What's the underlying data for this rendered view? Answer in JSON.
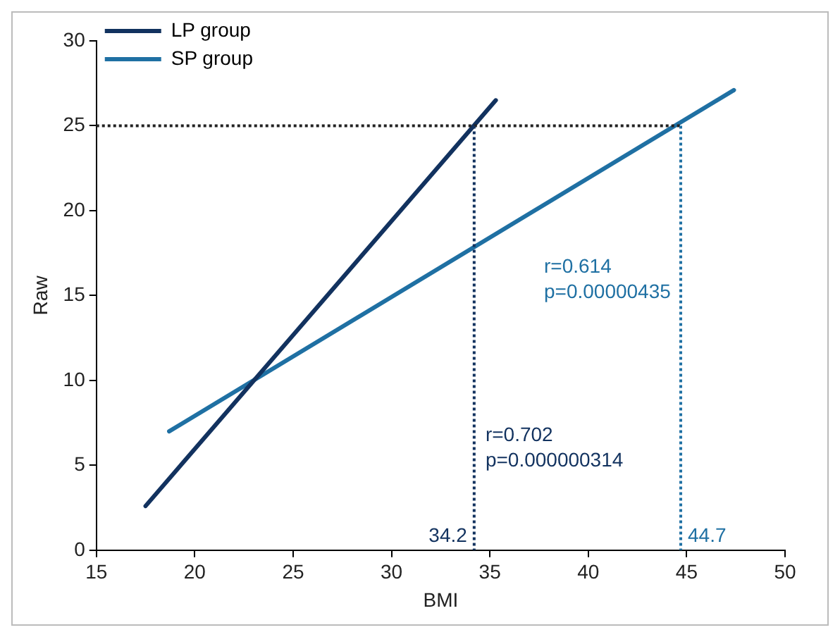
{
  "chart_data": {
    "type": "line",
    "xlabel": "BMI",
    "ylabel": "Raw",
    "xlim": [
      15,
      50
    ],
    "xticks": [
      15,
      20,
      25,
      30,
      35,
      40,
      45,
      50
    ],
    "ylim": [
      0,
      30
    ],
    "yticks": [
      0,
      5,
      10,
      15,
      20,
      25,
      30
    ],
    "grid": false,
    "legend": "top left",
    "marker": "none",
    "series": [
      {
        "name": "LP group",
        "color": "#12325f",
        "x": [
          17.5,
          35.3
        ],
        "values": [
          2.6,
          26.5
        ]
      },
      {
        "name": "SP group",
        "color": "#1f70a3",
        "x": [
          18.7,
          47.4
        ],
        "values": [
          7,
          27.1
        ]
      }
    ],
    "ref_lines": [
      {
        "axis": "y",
        "value": 25,
        "label": null,
        "color": "#222222",
        "line_style": "dotted"
      },
      {
        "axis": "x",
        "value": 34.2,
        "label": "34.2",
        "color": "#12325f",
        "line_style": "dotted"
      },
      {
        "axis": "x",
        "value": 44.7,
        "label": "44.7",
        "color": "#1f70a3",
        "line_style": "dotted"
      }
    ],
    "annotations": [
      "r=0.614\np=0.00000435",
      "r=0.702\np=0.000000314"
    ]
  }
}
